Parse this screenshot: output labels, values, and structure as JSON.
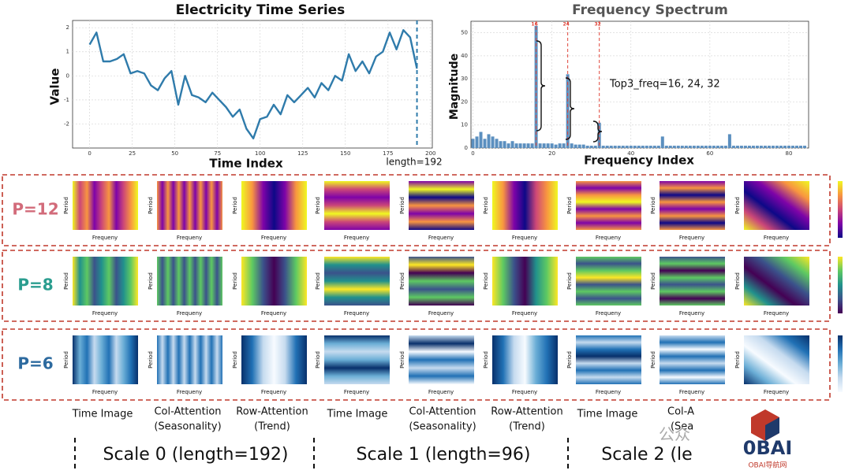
{
  "chart_data": [
    {
      "type": "line",
      "title": "Electricity Time Series",
      "xlabel": "Time Index",
      "ylabel": "Value",
      "x": [
        0,
        4,
        8,
        12,
        16,
        20,
        24,
        28,
        32,
        36,
        40,
        44,
        48,
        52,
        56,
        60,
        64,
        68,
        72,
        76,
        80,
        84,
        88,
        92,
        96,
        100,
        104,
        108,
        112,
        116,
        120,
        124,
        128,
        132,
        136,
        140,
        144,
        148,
        152,
        156,
        160,
        164,
        168,
        172,
        176,
        180,
        184,
        188,
        192
      ],
      "values": [
        1.3,
        1.8,
        0.6,
        0.6,
        0.7,
        0.9,
        0.1,
        0.2,
        0.1,
        -0.4,
        -0.6,
        -0.1,
        0.2,
        -1.2,
        0.0,
        -0.8,
        -0.9,
        -1.1,
        -0.7,
        -1.0,
        -1.3,
        -1.7,
        -1.4,
        -2.2,
        -2.6,
        -1.8,
        -1.7,
        -1.2,
        -1.6,
        -0.8,
        -1.1,
        -0.8,
        -0.5,
        -0.9,
        -0.3,
        -0.6,
        0.0,
        -0.2,
        0.9,
        0.2,
        0.6,
        0.1,
        0.8,
        1.0,
        1.8,
        1.1,
        1.9,
        1.6,
        0.3
      ],
      "color": "#2f7bab",
      "xlim": [
        -10,
        201
      ],
      "ylim": [
        -3.0,
        2.3
      ],
      "xticks": [
        0,
        25,
        50,
        75,
        100,
        125,
        150,
        175,
        200
      ],
      "yticks": [
        -2,
        -1,
        0,
        1,
        2
      ],
      "grid": true,
      "marker_x": 192,
      "annotation": "length=192"
    },
    {
      "type": "bar",
      "title": "Frequency Spectrum",
      "xlabel": "Frequency Index",
      "ylabel": "Magnitude",
      "x": [
        0,
        1,
        2,
        3,
        4,
        5,
        6,
        7,
        8,
        9,
        10,
        11,
        12,
        13,
        14,
        15,
        16,
        17,
        18,
        19,
        20,
        21,
        22,
        23,
        24,
        25,
        26,
        27,
        28,
        29,
        30,
        31,
        32,
        33,
        34,
        35,
        36,
        37,
        38,
        39,
        40,
        41,
        42,
        43,
        44,
        45,
        46,
        47,
        48,
        49,
        50,
        51,
        52,
        53,
        54,
        55,
        56,
        57,
        58,
        59,
        60,
        61,
        62,
        63,
        64,
        65,
        66,
        67,
        68,
        69,
        70,
        71,
        72,
        73,
        74,
        75,
        76,
        77,
        78,
        79,
        80,
        81,
        82,
        83,
        84
      ],
      "values": [
        4,
        5,
        7,
        4,
        6,
        5,
        4,
        3,
        3,
        2,
        3,
        2,
        2,
        2,
        2,
        2,
        53,
        2,
        2,
        2,
        2,
        1.5,
        2,
        2,
        32,
        2,
        1.5,
        1.5,
        1.5,
        1,
        1,
        1,
        11,
        1,
        1,
        1,
        1,
        1,
        1,
        1,
        1,
        1,
        1,
        1,
        1,
        1,
        1,
        1,
        5,
        1,
        1,
        1,
        1,
        1,
        1,
        1,
        1,
        1,
        1,
        1,
        1,
        1,
        1,
        1,
        1,
        6,
        1,
        1,
        1,
        1,
        1,
        1,
        1,
        1,
        1,
        1,
        1,
        1,
        1,
        1,
        1,
        1,
        1,
        1,
        1
      ],
      "color": "#5b8fbf",
      "xlim": [
        -0.5,
        85
      ],
      "ylim": [
        0,
        55
      ],
      "xticks": [
        0,
        20,
        40,
        60,
        80
      ],
      "yticks": [
        0,
        10,
        20,
        30,
        40,
        50
      ],
      "grid": true,
      "peaks": [
        16,
        24,
        32
      ],
      "peak_color": "#e0453a",
      "annotation": "Top3_freq=16, 24, 32"
    }
  ],
  "rows": [
    {
      "label": "P=12",
      "color": "#d26b7a",
      "cmap": [
        "#0d0887",
        "#7e03a8",
        "#cc4778",
        "#f89540",
        "#f0f921"
      ]
    },
    {
      "label": "P=8",
      "color": "#2a9d8f",
      "cmap": [
        "#440154",
        "#3b528b",
        "#21918c",
        "#5ec962",
        "#fde725"
      ]
    },
    {
      "label": "P=6",
      "color": "#2d6a9f",
      "cmap": [
        "#f7fbff",
        "#c6dbef",
        "#6baed6",
        "#2171b5",
        "#08306b"
      ]
    }
  ],
  "heatmap_axes": {
    "x": "Frequeny",
    "y": "Period"
  },
  "columns": [
    [
      "Time Image"
    ],
    [
      "Col-Attention",
      "(Seasonality)"
    ],
    [
      "Row-Attention",
      "(Trend)"
    ],
    [
      "Time Image"
    ],
    [
      "Col-Attention",
      "(Seasonality)"
    ],
    [
      "Row-Attention",
      "(Trend)"
    ],
    [
      "Time Image"
    ],
    [
      "Col-Att",
      "(Seas"
    ]
  ],
  "scales": [
    "Scale 0 (length=192)",
    "Scale 1 (length=96)",
    "Scale 2 (le"
  ],
  "watermark": {
    "text": "公众",
    "logo": "0BAI",
    "site": "OBAI导航网"
  }
}
